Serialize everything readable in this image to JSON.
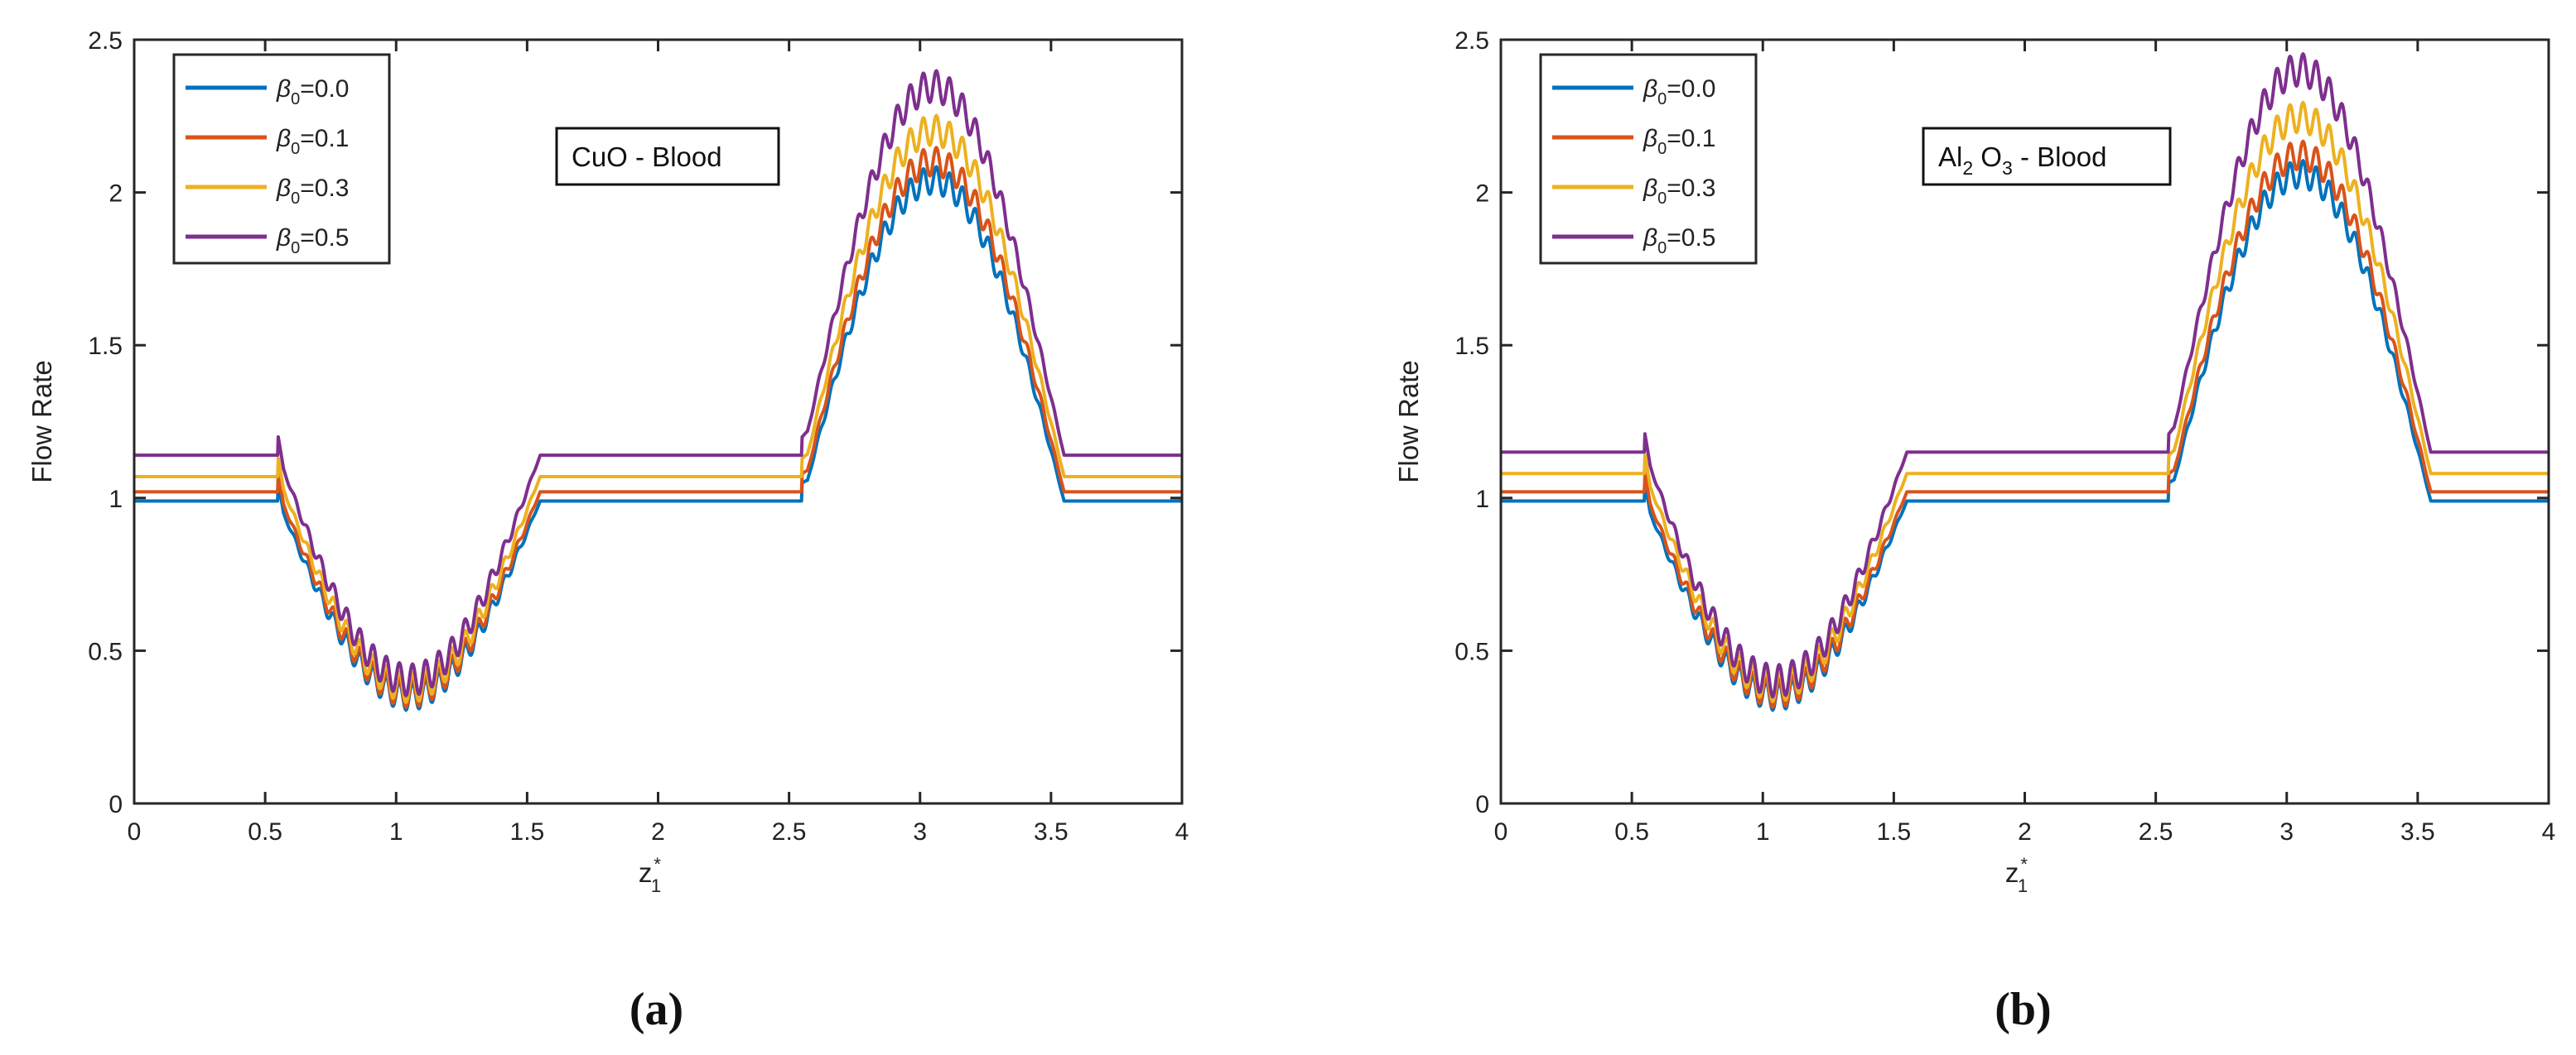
{
  "colors": {
    "b0": "#0072BD",
    "b1": "#D95319",
    "b3": "#EDB120",
    "b5": "#7E2F8E"
  },
  "legend": [
    {
      "sym": "β",
      "sub": "0",
      "val": "=0.0",
      "color": "#0072BD",
      "key": "b0"
    },
    {
      "sym": "β",
      "sub": "0",
      "val": "=0.1",
      "color": "#D95319",
      "key": "b1"
    },
    {
      "sym": "β",
      "sub": "0",
      "val": "=0.3",
      "color": "#EDB120",
      "key": "b3"
    },
    {
      "sym": "β",
      "sub": "0",
      "val": "=0.5",
      "color": "#7E2F8E",
      "key": "b5"
    }
  ],
  "chart_data": [
    {
      "type": "line",
      "panel": "a",
      "caption": "(a)",
      "annotation": {
        "parts": [
          {
            "t": "CuO - Blood",
            "sub": ""
          }
        ]
      },
      "xlabel": {
        "main": "z",
        "sup": "*",
        "sub": "1"
      },
      "ylabel": "Flow Rate",
      "xlim": [
        0,
        4
      ],
      "ylim": [
        0,
        2.5
      ],
      "xticks": [
        0,
        0.5,
        1,
        1.5,
        2,
        2.5,
        3,
        3.5,
        4
      ],
      "xtick_labels": [
        "0",
        "0.5",
        "1",
        "1.5",
        "2",
        "2.5",
        "3",
        "3.5",
        "4"
      ],
      "yticks": [
        0,
        0.5,
        1,
        1.5,
        2,
        2.5
      ],
      "ytick_labels": [
        "0",
        "0.5",
        "1",
        "1.5",
        "2",
        "2.5"
      ],
      "series": [
        {
          "name": "β0=0.0",
          "baseline": 0.99,
          "scale": 1.0
        },
        {
          "name": "β0=0.1",
          "baseline": 1.02,
          "scale": 1.03
        },
        {
          "name": "β0=0.3",
          "baseline": 1.07,
          "scale": 1.08
        },
        {
          "name": "β0=0.5",
          "baseline": 1.14,
          "scale": 1.15
        }
      ],
      "profile": {
        "segments": [
          {
            "z0": 0.55,
            "z1": 1.55,
            "amp": -0.64
          },
          {
            "z0": 2.55,
            "z1": 3.55,
            "amp": 1.05
          }
        ],
        "ripple": 0.045,
        "ripple_cycles": 20,
        "start_spike": 0.06
      }
    },
    {
      "type": "line",
      "panel": "b",
      "caption": "(b)",
      "annotation": {
        "parts": [
          {
            "t": "Al",
            "sub": "2"
          },
          {
            "t": " O",
            "sub": "3"
          },
          {
            "t": " - Blood",
            "sub": ""
          }
        ]
      },
      "xlabel": {
        "main": "z",
        "sup": "*",
        "sub": "1"
      },
      "ylabel": "Flow Rate",
      "xlim": [
        0,
        4
      ],
      "ylim": [
        0,
        2.5
      ],
      "xticks": [
        0,
        0.5,
        1,
        1.5,
        2,
        2.5,
        3,
        3.5,
        4
      ],
      "xtick_labels": [
        "0",
        "0.5",
        "1",
        "1.5",
        "2",
        "2.5",
        "3",
        "3.5",
        "4"
      ],
      "yticks": [
        0,
        0.5,
        1,
        1.5,
        2,
        2.5
      ],
      "ytick_labels": [
        "0",
        "0.5",
        "1",
        "1.5",
        "2",
        "2.5"
      ],
      "series": [
        {
          "name": "β0=0.0",
          "baseline": 0.99,
          "scale": 1.0
        },
        {
          "name": "β0=0.1",
          "baseline": 1.02,
          "scale": 1.03
        },
        {
          "name": "β0=0.3",
          "baseline": 1.08,
          "scale": 1.09
        },
        {
          "name": "β0=0.5",
          "baseline": 1.15,
          "scale": 1.17
        }
      ],
      "profile": {
        "segments": [
          {
            "z0": 0.55,
            "z1": 1.55,
            "amp": -0.64
          },
          {
            "z0": 2.55,
            "z1": 3.55,
            "amp": 1.07
          }
        ],
        "ripple": 0.045,
        "ripple_cycles": 20,
        "start_spike": 0.06
      }
    }
  ]
}
